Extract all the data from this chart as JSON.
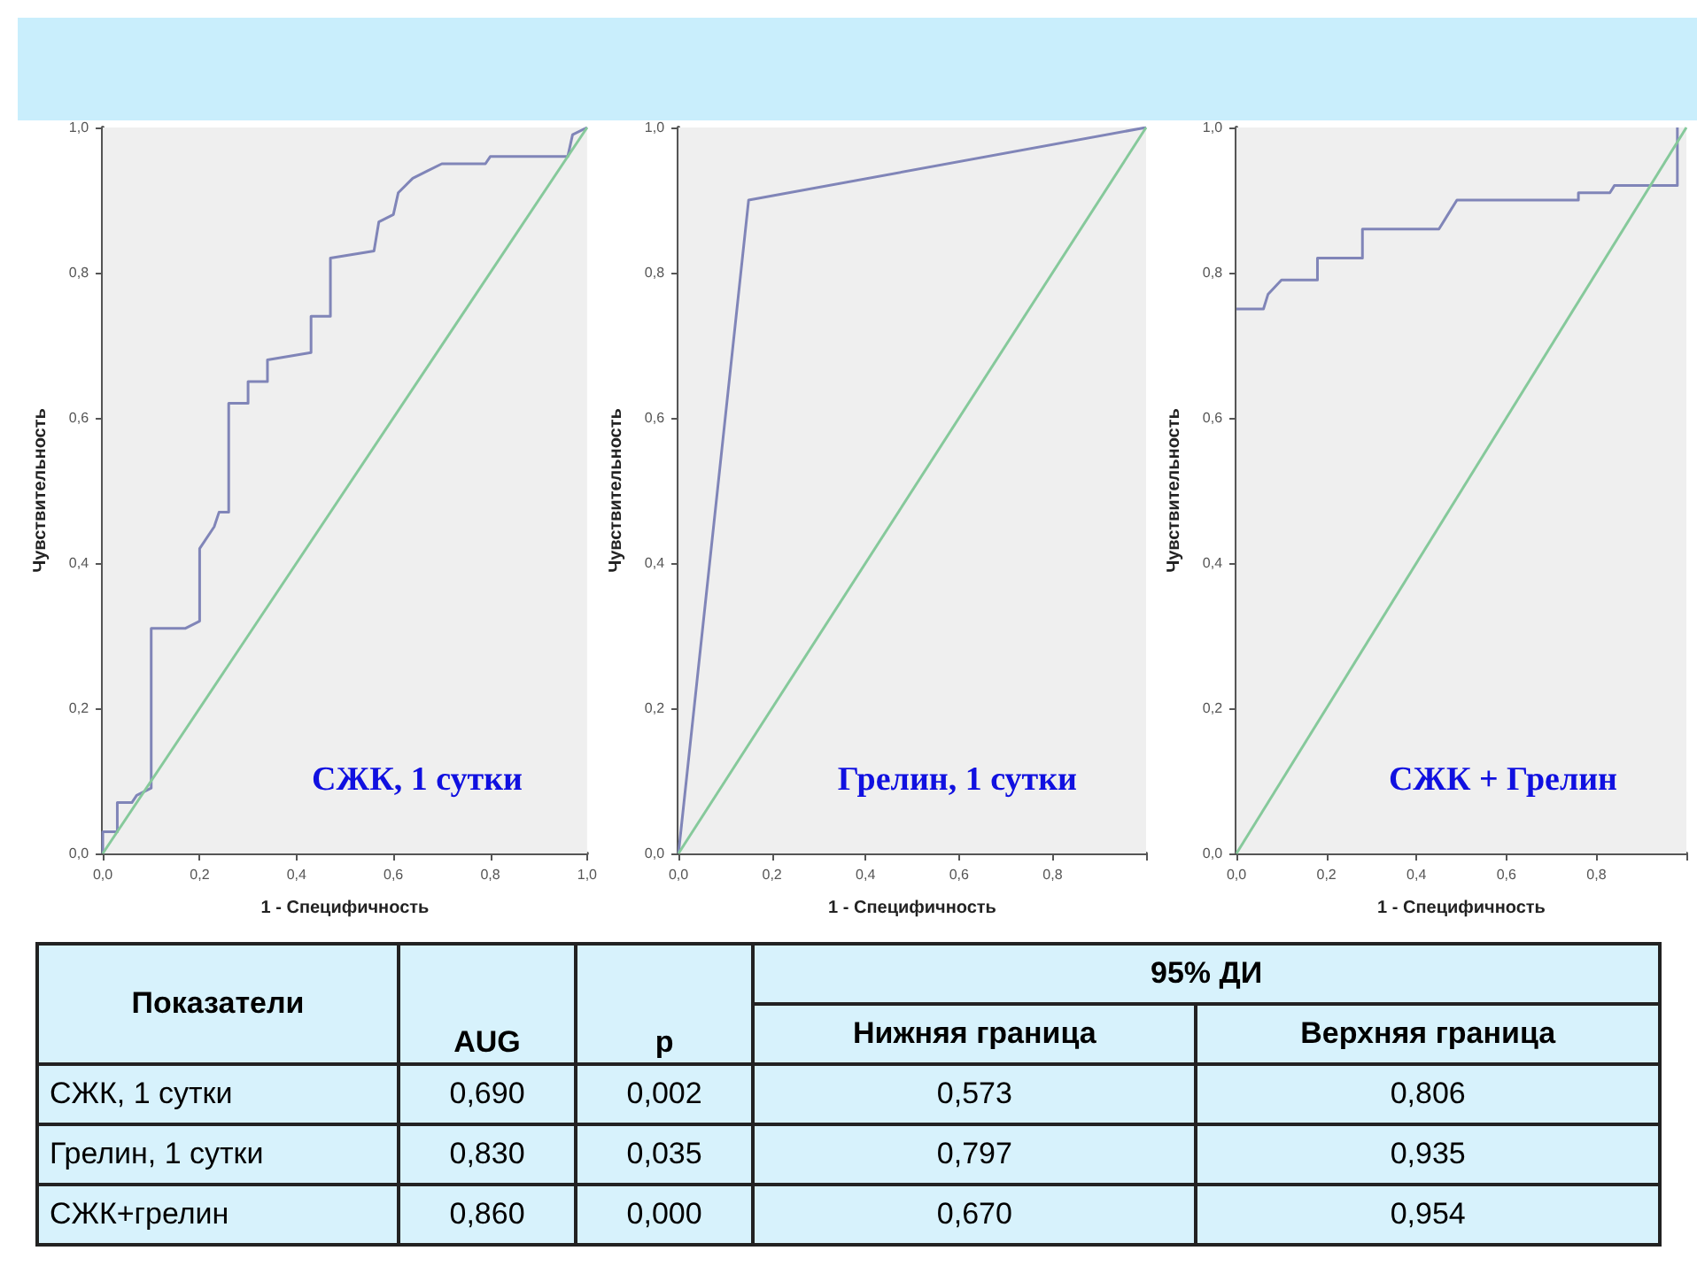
{
  "chart_data": [
    {
      "type": "line",
      "xlabel": "1 - Специфичность",
      "ylabel": "Чувствительность",
      "annotations": [
        "СЖК, 1 сутки"
      ],
      "xlim": [
        0,
        1
      ],
      "ylim": [
        0,
        1
      ],
      "grid": false,
      "marker": "none",
      "line_style": "solid",
      "xticks": [
        {
          "value": 0,
          "label": "0,0"
        },
        {
          "value": 0.2,
          "label": "0,2"
        },
        {
          "value": 0.4,
          "label": "0,4"
        },
        {
          "value": 0.6,
          "label": "0,6"
        },
        {
          "value": 0.8,
          "label": "0,8"
        },
        {
          "value": 1,
          "label": "1,0"
        }
      ],
      "yticks": [
        {
          "value": 0,
          "label": "0,0"
        },
        {
          "value": 0.2,
          "label": "0,2"
        },
        {
          "value": 0.4,
          "label": "0,4"
        },
        {
          "value": 0.6,
          "label": "0,6"
        },
        {
          "value": 0.8,
          "label": "0,8"
        },
        {
          "value": 1,
          "label": "1,0"
        }
      ],
      "series": [
        {
          "color": "#8085b8",
          "x": [
            0,
            0,
            0.03,
            0.03,
            0.06,
            0.07,
            0.1,
            0.1,
            0.17,
            0.2,
            0.2,
            0.23,
            0.24,
            0.26,
            0.26,
            0.3,
            0.3,
            0.34,
            0.34,
            0.43,
            0.43,
            0.47,
            0.47,
            0.56,
            0.57,
            0.6,
            0.61,
            0.64,
            0.67,
            0.7,
            0.79,
            0.8,
            0.96,
            0.97,
            1
          ],
          "values": [
            0,
            0.03,
            0.03,
            0.07,
            0.07,
            0.08,
            0.09,
            0.31,
            0.31,
            0.32,
            0.42,
            0.45,
            0.47,
            0.47,
            0.62,
            0.62,
            0.65,
            0.65,
            0.68,
            0.69,
            0.74,
            0.74,
            0.82,
            0.83,
            0.87,
            0.88,
            0.91,
            0.93,
            0.94,
            0.95,
            0.95,
            0.96,
            0.96,
            0.99,
            1
          ]
        },
        {
          "color": "#86c99b",
          "x": [
            0,
            1
          ],
          "values": [
            0,
            1
          ]
        }
      ]
    },
    {
      "type": "line",
      "xlabel": "1 - Специфичность",
      "ylabel": "Чувствительность",
      "annotations": [
        "Грелин, 1 сутки"
      ],
      "xlim": [
        0,
        1
      ],
      "ylim": [
        0,
        1
      ],
      "grid": false,
      "marker": "none",
      "line_style": "solid",
      "xticks": [
        {
          "value": 0,
          "label": "0,0"
        },
        {
          "value": 0.2,
          "label": "0,2"
        },
        {
          "value": 0.4,
          "label": "0,4"
        },
        {
          "value": 0.6,
          "label": "0,6"
        },
        {
          "value": 0.8,
          "label": "0,8"
        },
        {
          "value": 1,
          "label": null
        }
      ],
      "yticks": [
        {
          "value": 0,
          "label": "0,0"
        },
        {
          "value": 0.2,
          "label": "0,2"
        },
        {
          "value": 0.4,
          "label": "0,4"
        },
        {
          "value": 0.6,
          "label": "0,6"
        },
        {
          "value": 0.8,
          "label": "0,8"
        },
        {
          "value": 1,
          "label": "1,0"
        }
      ],
      "series": [
        {
          "color": "#8085b8",
          "x": [
            0,
            0.15,
            1
          ],
          "values": [
            0,
            0.9,
            1
          ]
        },
        {
          "color": "#86c99b",
          "x": [
            0,
            1
          ],
          "values": [
            0,
            1
          ]
        }
      ]
    },
    {
      "type": "line",
      "xlabel": "1 - Специфичность",
      "ylabel": "Чувствительность",
      "annotations": [
        "СЖК + Грелин"
      ],
      "xlim": [
        0,
        1
      ],
      "ylim": [
        0,
        1
      ],
      "grid": false,
      "marker": "none",
      "line_style": "solid",
      "xticks": [
        {
          "value": 0,
          "label": "0,0"
        },
        {
          "value": 0.2,
          "label": "0,2"
        },
        {
          "value": 0.4,
          "label": "0,4"
        },
        {
          "value": 0.6,
          "label": "0,6"
        },
        {
          "value": 0.8,
          "label": "0,8"
        },
        {
          "value": 1,
          "label": null
        }
      ],
      "yticks": [
        {
          "value": 0,
          "label": "0,0"
        },
        {
          "value": 0.2,
          "label": "0,2"
        },
        {
          "value": 0.4,
          "label": "0,4"
        },
        {
          "value": 0.6,
          "label": "0,6"
        },
        {
          "value": 0.8,
          "label": "0,8"
        },
        {
          "value": 1,
          "label": "1,0"
        }
      ],
      "series": [
        {
          "color": "#8085b8",
          "x": [
            0,
            0.06,
            0.07,
            0.1,
            0.18,
            0.18,
            0.28,
            0.28,
            0.45,
            0.47,
            0.49,
            0.76,
            0.76,
            0.83,
            0.84,
            0.98,
            0.98
          ],
          "values": [
            0.75,
            0.75,
            0.77,
            0.79,
            0.79,
            0.82,
            0.82,
            0.86,
            0.86,
            0.88,
            0.9,
            0.9,
            0.91,
            0.91,
            0.92,
            0.92,
            1
          ]
        },
        {
          "color": "#86c99b",
          "x": [
            0,
            1
          ],
          "values": [
            0,
            1
          ]
        }
      ]
    },
    {
      "type": "other",
      "annotations": [
        "Показатели",
        "95%  ДИ",
        "AUG",
        "p",
        "Нижняя граница",
        "Верхняя граница",
        "СЖК, 1 сутки",
        "0,690",
        "0,002",
        "0,573",
        "0,806",
        "Грелин, 1 сутки",
        "0,830",
        "0,035",
        "0,797",
        "0,935",
        "СЖК+грелин",
        "0,860",
        "0,000",
        "0,670",
        "0,954"
      ]
    }
  ]
}
